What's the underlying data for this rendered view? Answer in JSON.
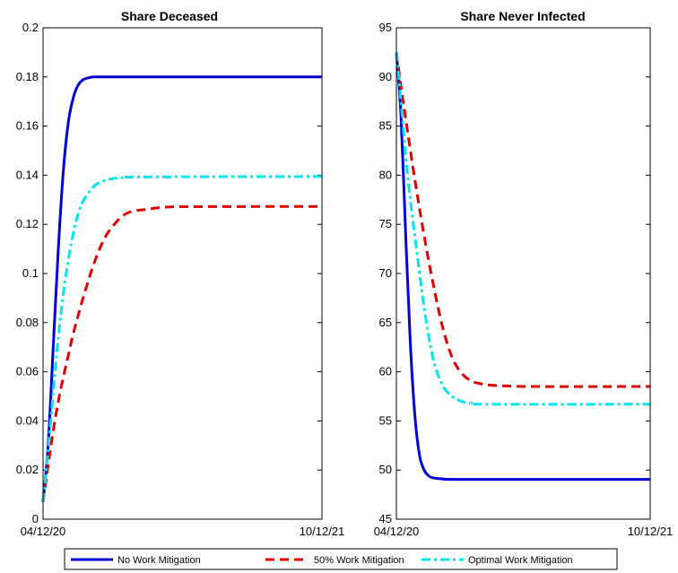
{
  "chart_data": [
    {
      "type": "line",
      "title": "Share Deceased",
      "xlabel": "",
      "ylabel": "",
      "x_ticks": [
        "04/12/20",
        "10/12/21"
      ],
      "ylim": [
        0,
        0.2
      ],
      "y_ticks": [
        "0",
        "0.02",
        "0.04",
        "0.06",
        "0.08",
        "0.1",
        "0.12",
        "0.14",
        "0.16",
        "0.18",
        "0.2"
      ],
      "x_units": "days since 04/12/20 (0 = 04/12/20, 548 = 10/12/21)",
      "series": [
        {
          "name": "No Work Mitigation",
          "x": [
            0,
            10,
            20,
            30,
            40,
            50,
            60,
            70,
            80,
            90,
            100,
            120,
            150,
            200,
            548
          ],
          "values": [
            0.007,
            0.03,
            0.07,
            0.11,
            0.142,
            0.162,
            0.172,
            0.177,
            0.179,
            0.1797,
            0.18,
            0.18,
            0.18,
            0.18,
            0.18
          ]
        },
        {
          "name": "50% Work Mitigation",
          "x": [
            0,
            10,
            20,
            30,
            40,
            50,
            60,
            80,
            100,
            120,
            140,
            160,
            180,
            200,
            240,
            300,
            548
          ],
          "values": [
            0.007,
            0.022,
            0.036,
            0.048,
            0.058,
            0.067,
            0.076,
            0.091,
            0.104,
            0.114,
            0.12,
            0.124,
            0.1255,
            0.126,
            0.127,
            0.1272,
            0.1273
          ]
        },
        {
          "name": "Optimal Work Mitigation",
          "x": [
            0,
            10,
            20,
            30,
            40,
            50,
            60,
            70,
            80,
            100,
            120,
            140,
            160,
            200,
            548
          ],
          "values": [
            0.007,
            0.028,
            0.052,
            0.074,
            0.092,
            0.106,
            0.117,
            0.125,
            0.13,
            0.1355,
            0.1378,
            0.1387,
            0.139,
            0.1393,
            0.1395
          ]
        }
      ]
    },
    {
      "type": "line",
      "title": "Share Never Infected",
      "xlabel": "",
      "ylabel": "",
      "x_ticks": [
        "04/12/20",
        "10/12/21"
      ],
      "ylim": [
        45,
        95
      ],
      "y_ticks": [
        "45",
        "50",
        "55",
        "60",
        "65",
        "70",
        "75",
        "80",
        "85",
        "90",
        "95"
      ],
      "x_units": "days since 04/12/20 (0 = 04/12/20, 548 = 10/12/21)",
      "series": [
        {
          "name": "No Work Mitigation",
          "x": [
            0,
            10,
            20,
            30,
            40,
            50,
            60,
            70,
            80,
            100,
            150,
            548
          ],
          "values": [
            92.5,
            86,
            74,
            63,
            55.5,
            51.5,
            50,
            49.4,
            49.2,
            49.1,
            49.05,
            49.05
          ]
        },
        {
          "name": "50% Work Mitigation",
          "x": [
            0,
            10,
            20,
            40,
            60,
            80,
            100,
            120,
            140,
            160,
            180,
            200,
            240,
            300,
            548
          ],
          "values": [
            92.5,
            89,
            85.8,
            79.5,
            73.8,
            68.8,
            64.5,
            61.5,
            59.9,
            59.1,
            58.8,
            58.65,
            58.55,
            58.5,
            58.5
          ]
        },
        {
          "name": "Optimal Work Mitigation",
          "x": [
            0,
            10,
            20,
            30,
            40,
            60,
            80,
            100,
            120,
            140,
            160,
            200,
            548
          ],
          "values": [
            92.5,
            87.5,
            82,
            77.5,
            73.8,
            66.5,
            61.2,
            58.6,
            57.5,
            57,
            56.8,
            56.7,
            56.7
          ]
        }
      ]
    }
  ],
  "legend": {
    "items": [
      {
        "label": "No Work Mitigation",
        "color": "#0000d6",
        "dash": "solid"
      },
      {
        "label": "50% Work Mitigation",
        "color": "#e00000",
        "dash": "dashed"
      },
      {
        "label": "Optimal Work Mitigation",
        "color": "#00e5ee",
        "dash": "dashdot"
      }
    ]
  },
  "colors": {
    "no_mitigation": "#0000d6",
    "fifty_mitigation": "#e00000",
    "optimal_mitigation": "#00e5ee"
  }
}
